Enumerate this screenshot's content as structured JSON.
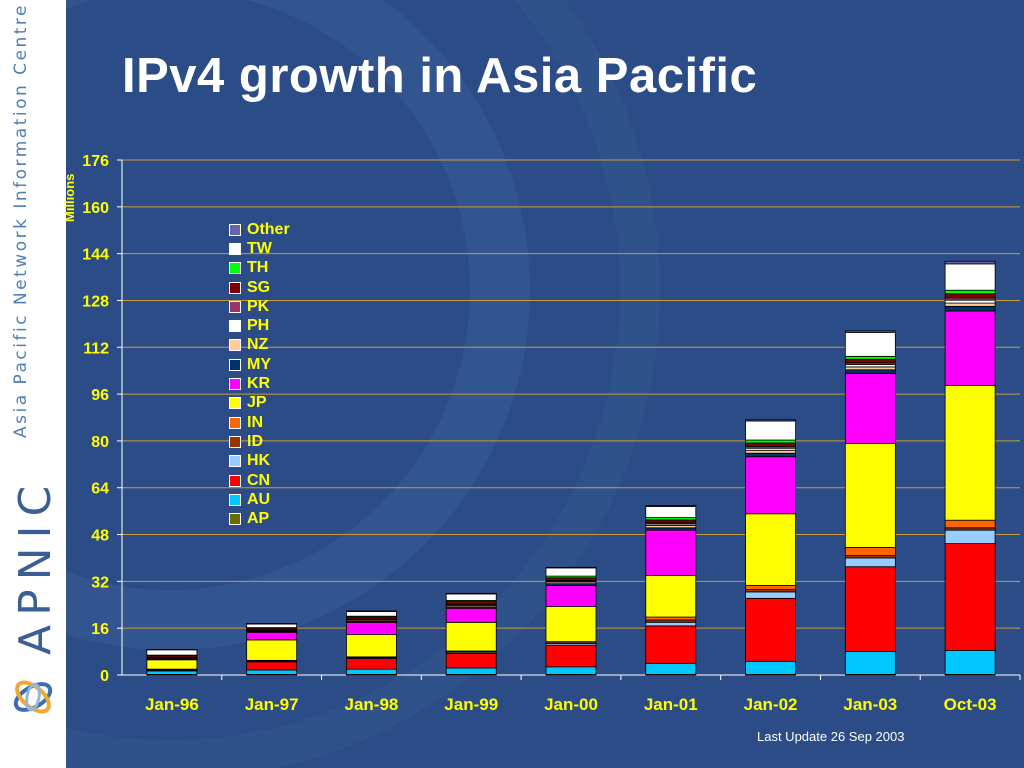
{
  "slide": {
    "title": "IPv4 growth in Asia Pacific",
    "footer": "Last Update 26 Sep 2003",
    "sidebar_text": "Asia Pacific Network Information Centre",
    "logo_text": "APNIC"
  },
  "colors": {
    "background": "#2b4c86",
    "axis_text": "#ffff00",
    "grid": "#c89b3a",
    "sidebar": "#ffffff"
  },
  "chart_data": {
    "type": "bar",
    "stacked": true,
    "title": "",
    "xlabel": "",
    "ylabel": "Millions",
    "ylim": [
      0,
      176
    ],
    "yticks": [
      0,
      16,
      32,
      48,
      64,
      80,
      96,
      112,
      128,
      144,
      160,
      176
    ],
    "grid": true,
    "legend_position": "top-left",
    "categories": [
      "Jan-96",
      "Jan-97",
      "Jan-98",
      "Jan-99",
      "Jan-00",
      "Jan-01",
      "Jan-02",
      "Jan-03",
      "Oct-03"
    ],
    "series": [
      {
        "name": "AP",
        "color": "#6b6b00",
        "values": [
          0.2,
          0.2,
          0.2,
          0.2,
          0.2,
          0.2,
          0.2,
          0.2,
          0.2
        ]
      },
      {
        "name": "AU",
        "color": "#00c8ff",
        "values": [
          1.2,
          1.5,
          1.8,
          2.2,
          2.6,
          3.8,
          4.5,
          7.8,
          8.2
        ]
      },
      {
        "name": "CN",
        "color": "#ff0000",
        "values": [
          0.2,
          2.8,
          3.6,
          5.0,
          7.4,
          12.8,
          21.5,
          29.0,
          36.5
        ]
      },
      {
        "name": "HK",
        "color": "#99ccff",
        "values": [
          0.2,
          0.3,
          0.3,
          0.4,
          0.6,
          1.2,
          2.2,
          3.0,
          4.6
        ]
      },
      {
        "name": "ID",
        "color": "#993300",
        "values": [
          0.1,
          0.1,
          0.1,
          0.1,
          0.2,
          0.8,
          0.8,
          0.8,
          0.8
        ]
      },
      {
        "name": "IN",
        "color": "#ff6600",
        "values": [
          0.1,
          0.1,
          0.2,
          0.3,
          0.4,
          1.0,
          1.4,
          2.8,
          2.6
        ]
      },
      {
        "name": "JP",
        "color": "#ffff00",
        "values": [
          3.2,
          7.0,
          7.6,
          9.8,
          12.0,
          14.2,
          24.5,
          35.5,
          46.0
        ]
      },
      {
        "name": "KR",
        "color": "#ff00ff",
        "values": [
          0.2,
          2.6,
          4.2,
          4.8,
          7.2,
          15.5,
          19.5,
          24.0,
          25.5
        ]
      },
      {
        "name": "MY",
        "color": "#003366",
        "values": [
          0.2,
          0.3,
          0.4,
          0.5,
          0.6,
          0.8,
          1.2,
          1.2,
          1.6
        ]
      },
      {
        "name": "NZ",
        "color": "#ffcc99",
        "values": [
          0.3,
          0.3,
          0.4,
          0.5,
          0.6,
          0.8,
          1.0,
          1.0,
          1.1
        ]
      },
      {
        "name": "PH",
        "color": "#ffffff",
        "values": [
          0.1,
          0.1,
          0.2,
          0.3,
          0.3,
          0.5,
          0.7,
          0.8,
          1.0
        ]
      },
      {
        "name": "PK",
        "color": "#993366",
        "values": [
          0.1,
          0.1,
          0.1,
          0.2,
          0.2,
          0.4,
          0.6,
          0.6,
          0.8
        ]
      },
      {
        "name": "SG",
        "color": "#800000",
        "values": [
          0.6,
          0.6,
          0.7,
          0.8,
          0.9,
          1.0,
          1.2,
          1.2,
          1.4
        ]
      },
      {
        "name": "TH",
        "color": "#00ff00",
        "values": [
          0.1,
          0.2,
          0.3,
          0.4,
          0.6,
          0.8,
          1.0,
          1.0,
          1.2
        ]
      },
      {
        "name": "TW",
        "color": "#ffffff",
        "values": [
          1.8,
          1.2,
          1.6,
          2.2,
          2.8,
          3.8,
          6.5,
          8.2,
          9.0
        ]
      },
      {
        "name": "Other",
        "color": "#6666aa",
        "values": [
          0.1,
          0.2,
          0.2,
          0.2,
          0.2,
          0.3,
          0.4,
          0.5,
          0.9
        ]
      }
    ]
  }
}
